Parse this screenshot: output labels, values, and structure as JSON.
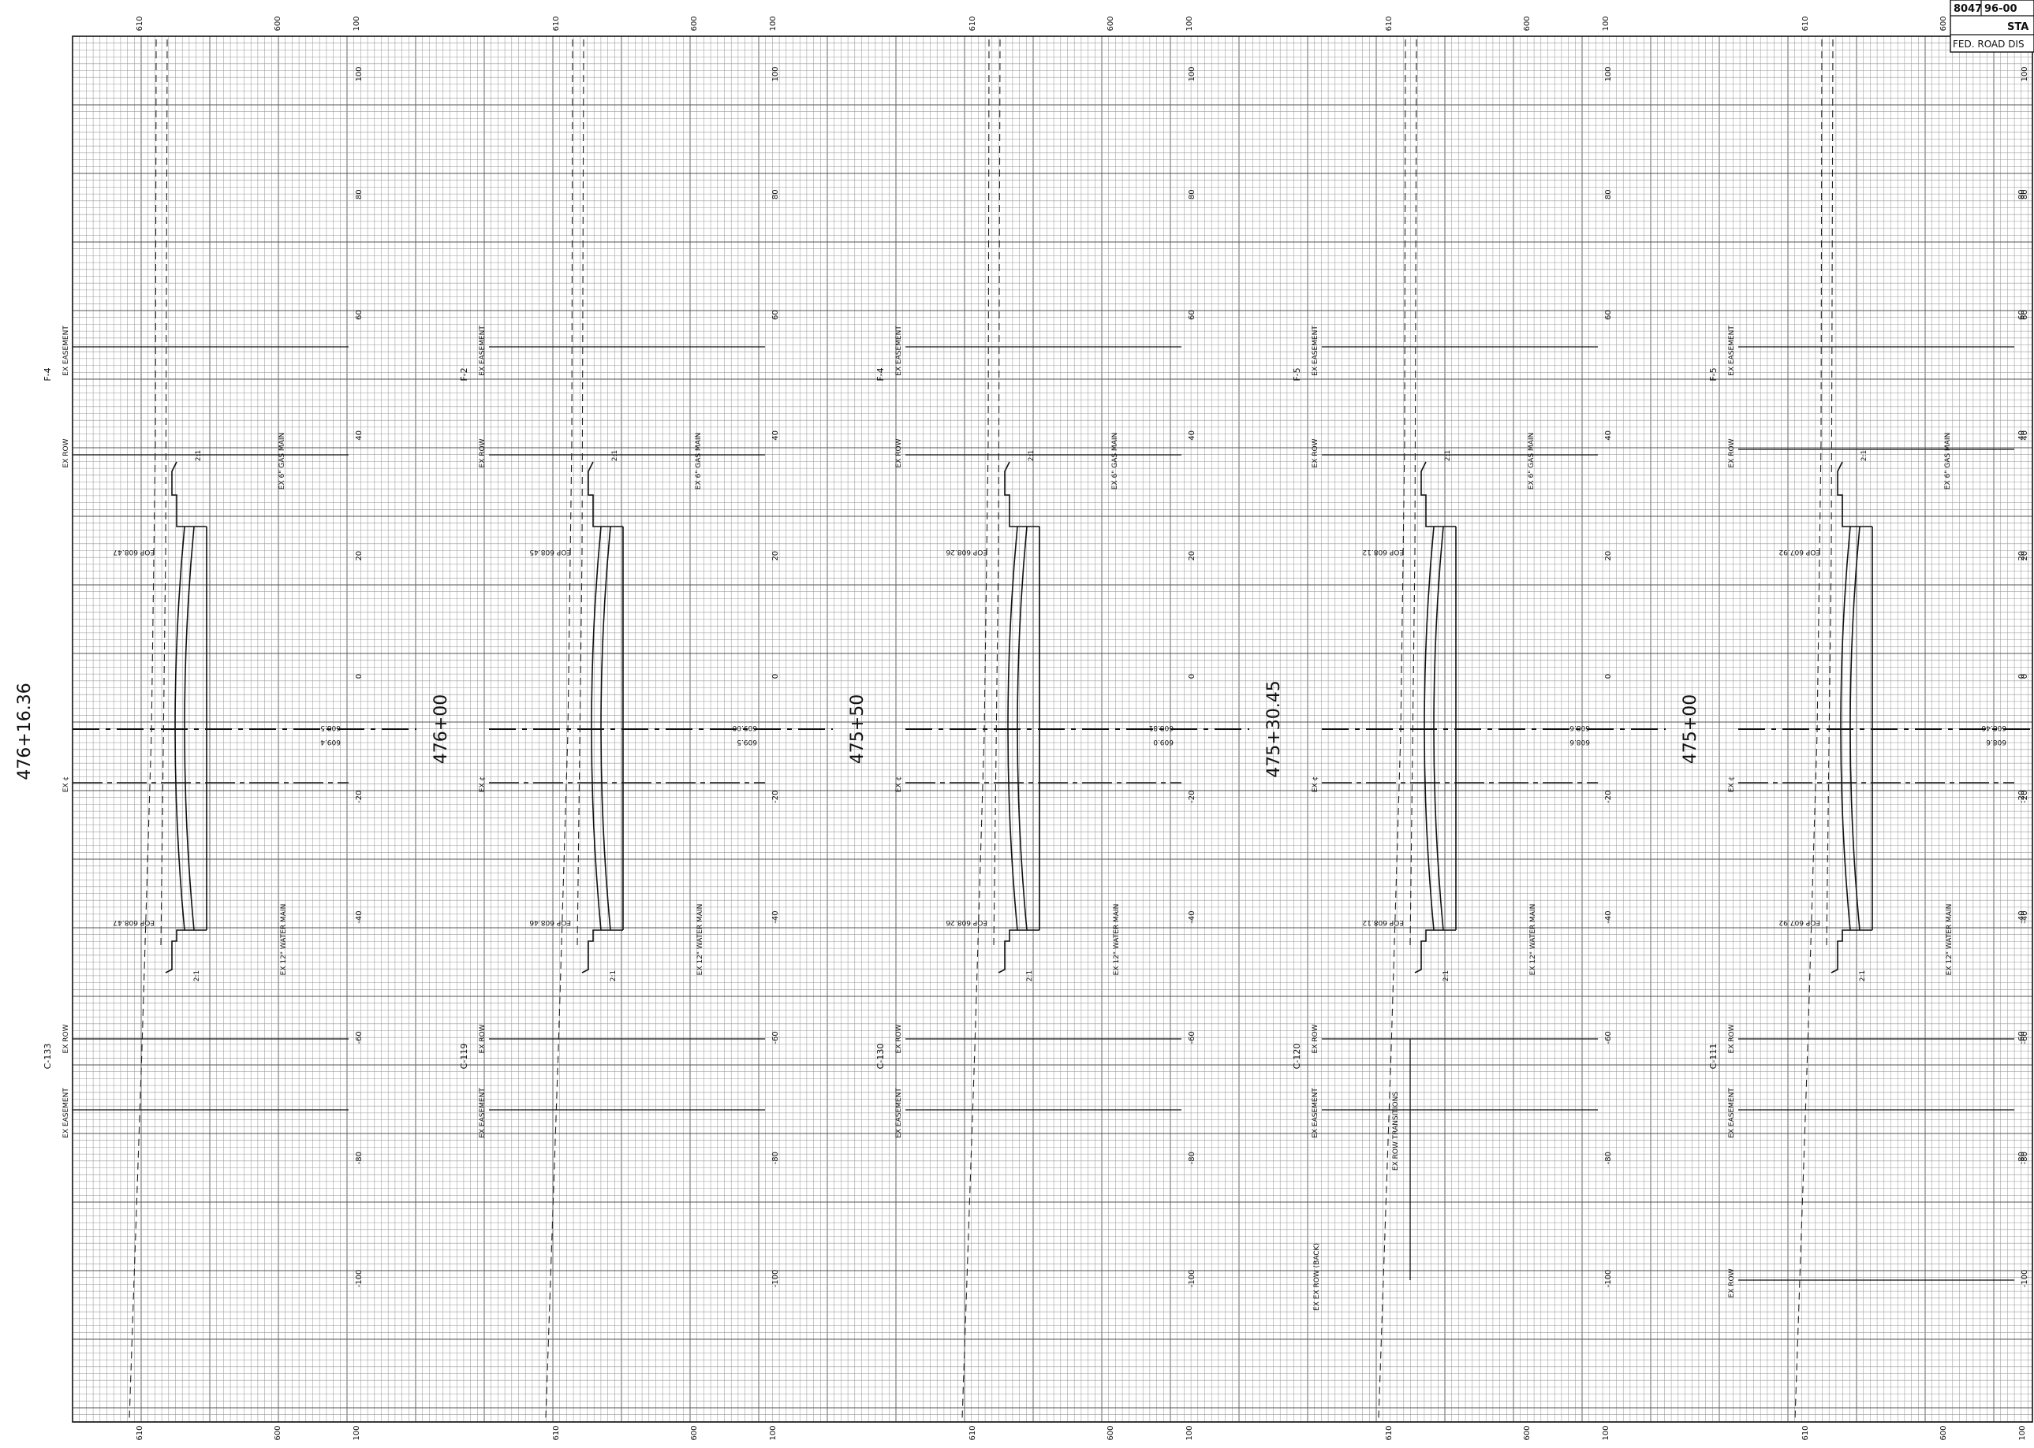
{
  "stations": [
    "476+16.36",
    "476+00",
    "475+50",
    "475+30.45",
    "475+00"
  ],
  "elevation_ticks": [
    "610",
    "600",
    "100"
  ],
  "offset_ticks": [
    "100",
    "80",
    "60",
    "40",
    "20",
    "0",
    "-20",
    "-40",
    "-60",
    "-80",
    "-100"
  ],
  "sections": [
    {
      "top_code": "F-4",
      "bottom_code": "C-133",
      "eop_top": "EOP 608.47",
      "eop_bottom": "EOP 608.47",
      "cl_left": "608.5",
      "cl_right": "609.4",
      "gas": "EX 6\" GAS MAIN",
      "water": "EX 12\" WATER MAIN"
    },
    {
      "top_code": "F-2",
      "bottom_code": "C-119",
      "eop_top": "EOP 608.45",
      "eop_bottom": "EOP 608.46",
      "cl_left": "609.00",
      "cl_right": "609.5",
      "gas": "EX 6\" GAS MAIN",
      "water": "EX 12\" WATER MAIN"
    },
    {
      "top_code": "F-4",
      "bottom_code": "C-130",
      "eop_top": "EOP 608.26",
      "eop_bottom": "EOP 608.26",
      "cl_left": "608.81",
      "cl_right": "609.0",
      "gas": "EX 6\" GAS MAIN",
      "water": "EX 12\" WATER MAIN"
    },
    {
      "top_code": "F-5",
      "bottom_code": "C-120",
      "eop_top": "EOP 608.12",
      "eop_bottom": "EOP 608.12",
      "cl_left": "608.6",
      "cl_right": "608.6",
      "gas": "EX 6\" GAS MAIN",
      "water": "EX 12\" WATER MAIN"
    },
    {
      "top_code": "F-5",
      "bottom_code": "C-111",
      "eop_top": "EOP 607.92",
      "eop_bottom": "EOP 607.92",
      "cl_left": "608.46",
      "cl_right": "608.6",
      "gas": "EX 6\" GAS MAIN",
      "water": "EX 12\" WATER MAIN"
    }
  ],
  "labels": {
    "ex_easement": "EX EASEMENT",
    "ex_row": "EX ROW",
    "ex_cl": "EX ¢",
    "transitions": "EX ROW TRANSITIONS",
    "ex_row_back": "EX EX ROW (BACK)",
    "slope": "2:1"
  },
  "title_block": {
    "cell_a": "8047",
    "cell_b": "96-00",
    "row2": "STA",
    "row3": "FED. ROAD DIS"
  }
}
